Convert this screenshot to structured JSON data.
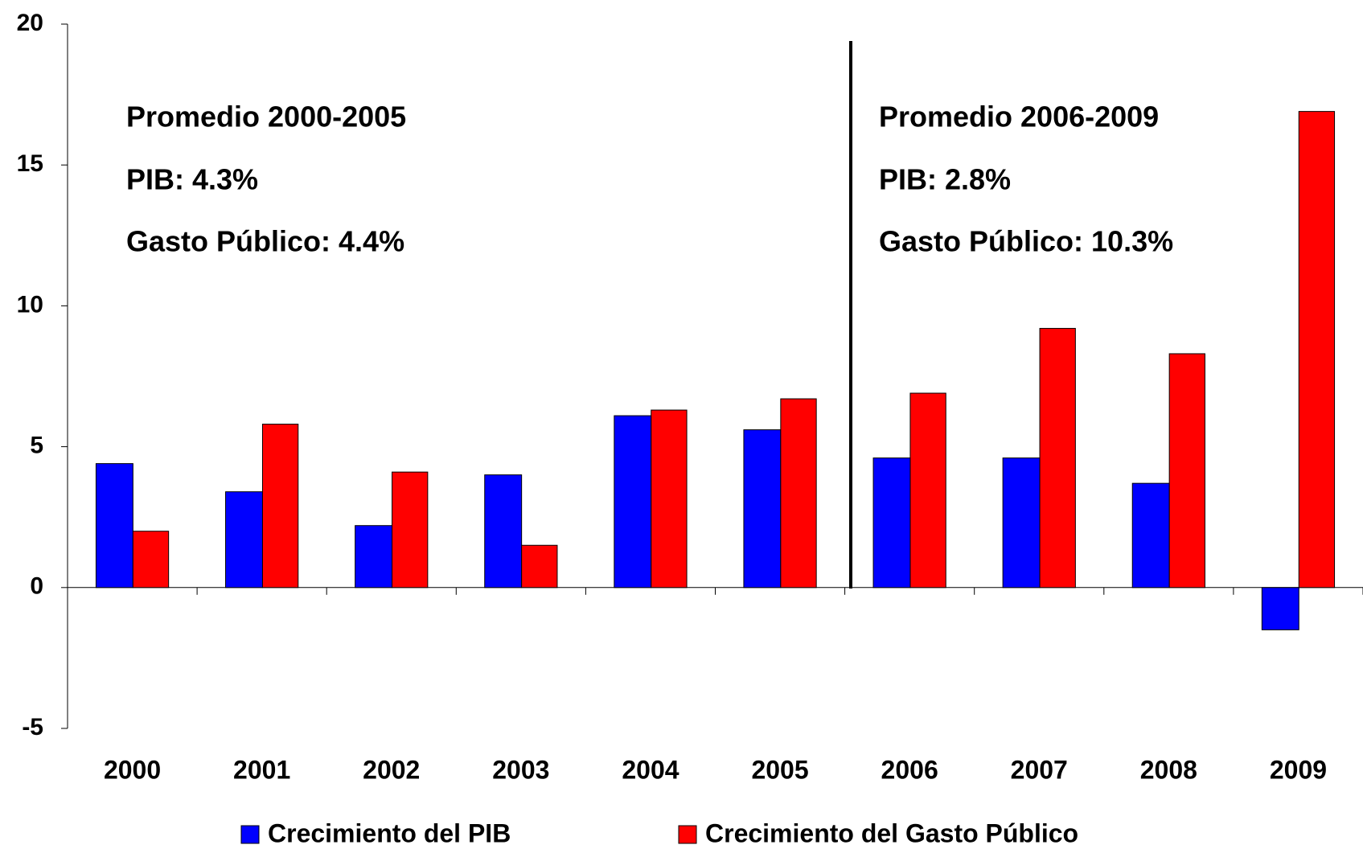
{
  "chart_data": {
    "type": "bar",
    "categories": [
      "2000",
      "2001",
      "2002",
      "2003",
      "2004",
      "2005",
      "2006",
      "2007",
      "2008",
      "2009"
    ],
    "series": [
      {
        "name": "Crecimiento del PIB",
        "color": "#0000ff",
        "values": [
          4.4,
          3.4,
          2.2,
          4.0,
          6.1,
          5.6,
          4.6,
          4.6,
          3.7,
          -1.5
        ]
      },
      {
        "name": "Crecimiento del Gasto Público",
        "color": "#ff0000",
        "values": [
          2.0,
          5.8,
          4.1,
          1.5,
          6.3,
          6.7,
          6.9,
          9.2,
          8.3,
          16.9
        ]
      }
    ],
    "annotations": [
      [
        "Promedio 2000-2005",
        "PIB: 4.3%",
        "Gasto Público: 4.4%"
      ],
      [
        "Promedio 2006-2009",
        "PIB: 2.8%",
        "Gasto Público: 10.3%"
      ]
    ],
    "ylim": [
      -5,
      20
    ],
    "yticks": [
      -5,
      0,
      5,
      10,
      15,
      20
    ],
    "grid": false,
    "legend": "bottom"
  }
}
